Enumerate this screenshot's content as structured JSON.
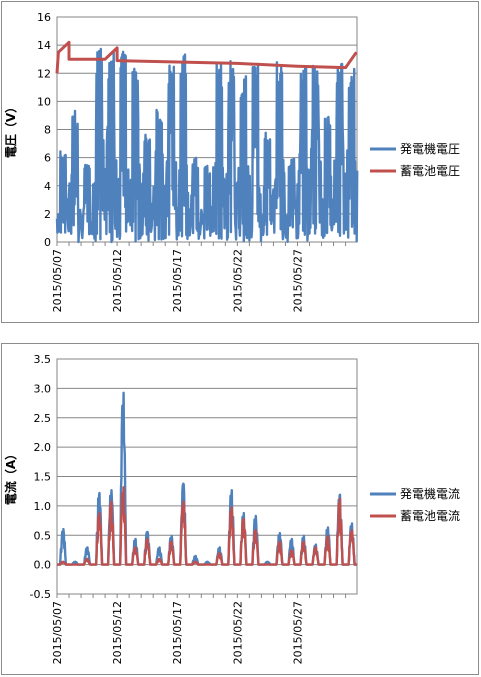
{
  "chart_data": [
    {
      "type": "line",
      "ylabel": "電圧（V）",
      "ylim": [
        0,
        16
      ],
      "yticks": [
        "0",
        "2",
        "4",
        "6",
        "8",
        "10",
        "12",
        "14",
        "16"
      ],
      "xlim": [
        "2015/05/07",
        "2015/05/31"
      ],
      "xticks": [
        "2015/05/07",
        "2015/05/12",
        "2015/05/17",
        "2015/05/22",
        "2015/05/27"
      ],
      "grid": "horizontal",
      "legend_position": "right",
      "series": [
        {
          "name": "発電機電圧",
          "color": "#4f81bd",
          "style": "dense daily oscillation",
          "days": [
            {
              "day": "2015/05/07",
              "peak": 6.5
            },
            {
              "day": "2015/05/08",
              "peak": 9.5
            },
            {
              "day": "2015/05/09",
              "peak": 5.5
            },
            {
              "day": "2015/05/10",
              "peak": 13.8
            },
            {
              "day": "2015/05/11",
              "peak": 13.5
            },
            {
              "day": "2015/05/12",
              "peak": 13.8
            },
            {
              "day": "2015/05/13",
              "peak": 12.8
            },
            {
              "day": "2015/05/14",
              "peak": 8.0
            },
            {
              "day": "2015/05/15",
              "peak": 9.5
            },
            {
              "day": "2015/05/16",
              "peak": 12.8
            },
            {
              "day": "2015/05/17",
              "peak": 13.5
            },
            {
              "day": "2015/05/18",
              "peak": 6.0
            },
            {
              "day": "2015/05/19",
              "peak": 5.5
            },
            {
              "day": "2015/05/20",
              "peak": 12.8
            },
            {
              "day": "2015/05/21",
              "peak": 13.0
            },
            {
              "day": "2015/05/22",
              "peak": 12.0
            },
            {
              "day": "2015/05/23",
              "peak": 13.0
            },
            {
              "day": "2015/05/24",
              "peak": 8.0
            },
            {
              "day": "2015/05/25",
              "peak": 12.8
            },
            {
              "day": "2015/05/26",
              "peak": 6.0
            },
            {
              "day": "2015/05/27",
              "peak": 12.8
            },
            {
              "day": "2015/05/28",
              "peak": 12.8
            },
            {
              "day": "2015/05/29",
              "peak": 9.0
            },
            {
              "day": "2015/05/30",
              "peak": 13.0
            },
            {
              "day": "2015/05/31",
              "peak": 12.6
            }
          ]
        },
        {
          "name": "蓄電池電圧",
          "color": "#c0504d",
          "points": [
            {
              "x": "2015/05/07",
              "y": 12.0
            },
            {
              "x": "2015/05/07",
              "y": 13.5
            },
            {
              "x": "2015/05/08",
              "y": 14.2
            },
            {
              "x": "2015/05/08",
              "y": 13.0
            },
            {
              "x": "2015/05/11",
              "y": 13.0
            },
            {
              "x": "2015/05/12",
              "y": 13.8
            },
            {
              "x": "2015/05/12",
              "y": 12.9
            },
            {
              "x": "2015/05/17",
              "y": 12.8
            },
            {
              "x": "2015/05/22",
              "y": 12.7
            },
            {
              "x": "2015/05/27",
              "y": 12.5
            },
            {
              "x": "2015/05/31",
              "y": 12.4
            },
            {
              "x": "2015/05/31",
              "y": 13.5
            }
          ]
        }
      ]
    },
    {
      "type": "area",
      "ylabel": "電流（A）",
      "ylim": [
        -0.5,
        3.5
      ],
      "yticks": [
        "-0.5",
        "0.0",
        "0.5",
        "1.0",
        "1.5",
        "2.0",
        "2.5",
        "3.0",
        "3.5"
      ],
      "xlim": [
        "2015/05/07",
        "2015/05/31"
      ],
      "xticks": [
        "2015/05/07",
        "2015/05/12",
        "2015/05/17",
        "2015/05/22",
        "2015/05/27"
      ],
      "grid": "horizontal",
      "legend_position": "right",
      "series": [
        {
          "name": "発電機電流",
          "color": "#4f81bd",
          "days": [
            {
              "day": "2015/05/07",
              "peak": 0.62
            },
            {
              "day": "2015/05/08",
              "peak": 0.05
            },
            {
              "day": "2015/05/09",
              "peak": 0.3
            },
            {
              "day": "2015/05/10",
              "peak": 1.25
            },
            {
              "day": "2015/05/11",
              "peak": 1.3
            },
            {
              "day": "2015/05/12",
              "peak": 3.0
            },
            {
              "day": "2015/05/13",
              "peak": 0.45
            },
            {
              "day": "2015/05/14",
              "peak": 0.57
            },
            {
              "day": "2015/05/15",
              "peak": 0.3
            },
            {
              "day": "2015/05/16",
              "peak": 0.5
            },
            {
              "day": "2015/05/17",
              "peak": 1.4
            },
            {
              "day": "2015/05/18",
              "peak": 0.15
            },
            {
              "day": "2015/05/19",
              "peak": 0.05
            },
            {
              "day": "2015/05/20",
              "peak": 0.3
            },
            {
              "day": "2015/05/21",
              "peak": 1.3
            },
            {
              "day": "2015/05/22",
              "peak": 0.9
            },
            {
              "day": "2015/05/23",
              "peak": 0.85
            },
            {
              "day": "2015/05/24",
              "peak": 0.05
            },
            {
              "day": "2015/05/25",
              "peak": 0.55
            },
            {
              "day": "2015/05/26",
              "peak": 0.45
            },
            {
              "day": "2015/05/27",
              "peak": 0.5
            },
            {
              "day": "2015/05/28",
              "peak": 0.35
            },
            {
              "day": "2015/05/29",
              "peak": 0.65
            },
            {
              "day": "2015/05/30",
              "peak": 1.22
            },
            {
              "day": "2015/05/31",
              "peak": 0.72
            }
          ]
        },
        {
          "name": "蓄電池電流",
          "color": "#c0504d",
          "days": [
            {
              "day": "2015/05/07",
              "peak": 0.05
            },
            {
              "day": "2015/05/08",
              "peak": 0.0
            },
            {
              "day": "2015/05/09",
              "peak": 0.1
            },
            {
              "day": "2015/05/10",
              "peak": 0.9
            },
            {
              "day": "2015/05/11",
              "peak": 1.1
            },
            {
              "day": "2015/05/12",
              "peak": 1.35
            },
            {
              "day": "2015/05/13",
              "peak": 0.3
            },
            {
              "day": "2015/05/14",
              "peak": 0.45
            },
            {
              "day": "2015/05/15",
              "peak": 0.1
            },
            {
              "day": "2015/05/16",
              "peak": 0.4
            },
            {
              "day": "2015/05/17",
              "peak": 1.1
            },
            {
              "day": "2015/05/18",
              "peak": 0.05
            },
            {
              "day": "2015/05/19",
              "peak": 0.0
            },
            {
              "day": "2015/05/20",
              "peak": 0.2
            },
            {
              "day": "2015/05/21",
              "peak": 1.0
            },
            {
              "day": "2015/05/22",
              "peak": 0.8
            },
            {
              "day": "2015/05/23",
              "peak": 0.6
            },
            {
              "day": "2015/05/24",
              "peak": 0.0
            },
            {
              "day": "2015/05/25",
              "peak": 0.4
            },
            {
              "day": "2015/05/26",
              "peak": 0.25
            },
            {
              "day": "2015/05/27",
              "peak": 0.4
            },
            {
              "day": "2015/05/28",
              "peak": 0.3
            },
            {
              "day": "2015/05/29",
              "peak": 0.5
            },
            {
              "day": "2015/05/30",
              "peak": 1.15
            },
            {
              "day": "2015/05/31",
              "peak": 0.6
            }
          ]
        }
      ]
    }
  ]
}
